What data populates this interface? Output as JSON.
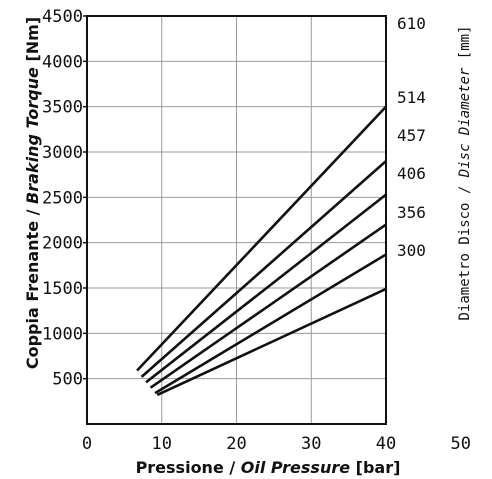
{
  "chart_data": {
    "type": "line",
    "x_axis": {
      "label_parts": [
        "Pressione / ",
        "Oil Pressure",
        " [bar]"
      ],
      "ticks": [
        0,
        10,
        20,
        30,
        40,
        50
      ],
      "range": [
        0,
        40
      ]
    },
    "y_axis": {
      "label_parts": [
        "Coppia Frenante / ",
        "Braking Torque",
        " [Nm]"
      ],
      "ticks": [
        500,
        1000,
        1500,
        2000,
        2500,
        3000,
        3500,
        4000,
        4500
      ],
      "range": [
        0,
        4500
      ]
    },
    "right_axis": {
      "label_parts": [
        "Diametro Disco / ",
        "Disc Diameter",
        " [mm]"
      ],
      "labels": [
        "610",
        "514",
        "457",
        "406",
        "356",
        "300"
      ]
    },
    "series": [
      {
        "name": "514",
        "points": [
          [
            6.7,
            590
          ],
          [
            40,
            3500
          ]
        ]
      },
      {
        "name": "457",
        "points": [
          [
            7.3,
            520
          ],
          [
            40,
            2900
          ]
        ]
      },
      {
        "name": "406",
        "points": [
          [
            7.9,
            460
          ],
          [
            40,
            2530
          ]
        ]
      },
      {
        "name": "356",
        "points": [
          [
            8.5,
            400
          ],
          [
            40,
            2200
          ]
        ]
      },
      {
        "name": "300",
        "points": [
          [
            9.1,
            340
          ],
          [
            40,
            1870
          ]
        ]
      },
      {
        "name": "",
        "points": [
          [
            9.4,
            320
          ],
          [
            40,
            1490
          ]
        ]
      }
    ],
    "grid": true
  }
}
